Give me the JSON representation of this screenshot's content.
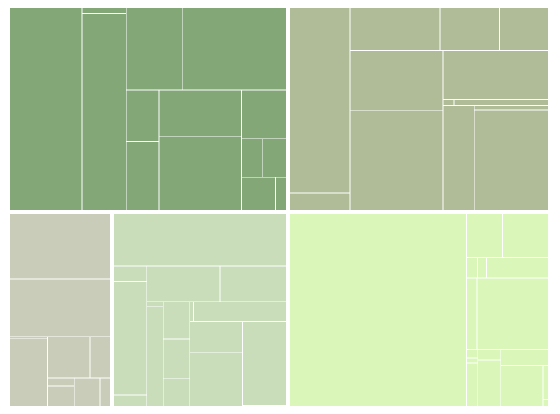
{
  "chart_data": {
    "type": "treemap",
    "title": "",
    "legend": "none",
    "colors": [
      "#84a777",
      "#b0bc98",
      "#c8ccb9",
      "#c9ddbb",
      "#daf7b9"
    ],
    "groups": [
      {
        "color": "#84a777",
        "children": [
          44.2,
          0.8,
          26.0,
          14.0,
          25.6,
          5.1,
          6.8,
          11.6,
          18.2,
          6.6,
          2.4,
          2.8,
          3.4,
          1.1
        ]
      },
      {
        "color": "#b0bc98",
        "children": [
          35.2,
          3.3,
          12.1,
          8.0,
          6.6,
          17.6,
          29.1,
          16.3,
          0.2,
          1.7,
          10.3,
          1.1,
          23.4
        ]
      },
      {
        "color": "#c8ccb9",
        "children": [
          24.2,
          21.4,
          0.2,
          9.5,
          6.4,
          3.1,
          0.8,
          2.0,
          2.7,
          1.1
        ]
      },
      {
        "color": "#c9ddbb",
        "children": [
          37.6,
          2.1,
          15.6,
          1.6,
          10.8,
          9.8,
          0.3,
          6.8,
          4.1,
          4.3,
          3.1,
          0.3,
          7.6,
          6.8,
          11.7,
          15.3,
          0.2
        ]
      },
      {
        "color": "#daf7b9",
        "children": [
          181.0,
          8.4,
          10.7,
          1.2,
          1.0,
          6.8,
          4.0,
          27.1,
          0.5,
          0.3,
          2.6,
          1.3,
          5.7,
          4.0,
          9.2,
          1.0,
          0.2
        ]
      }
    ]
  }
}
